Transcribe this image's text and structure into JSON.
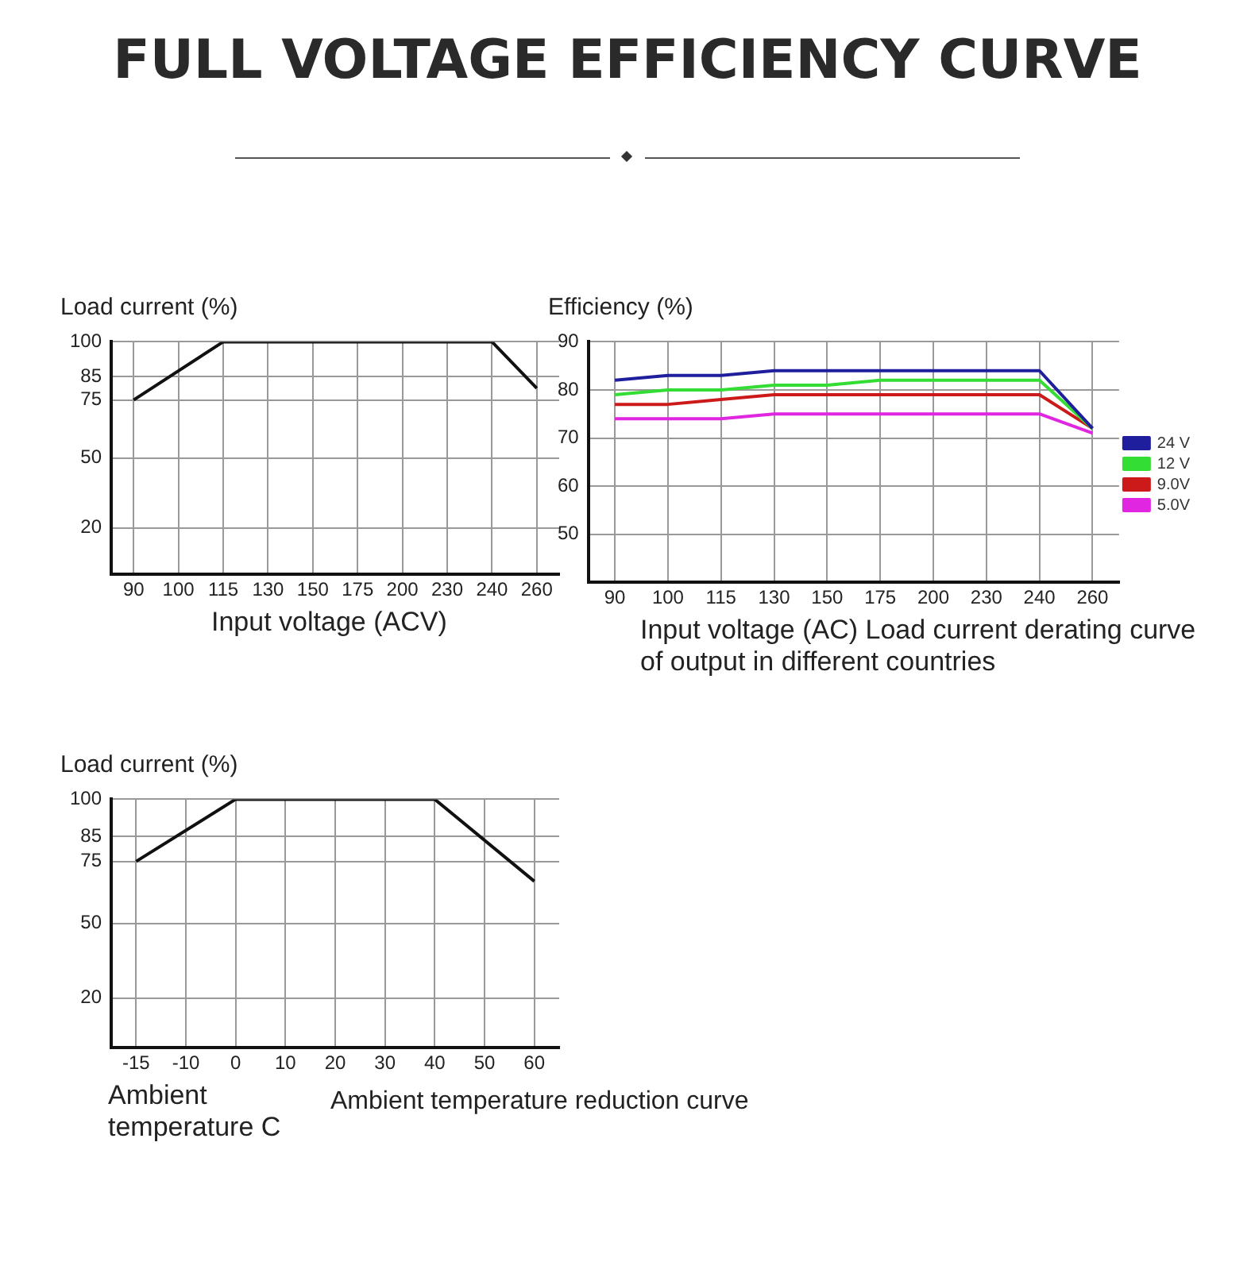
{
  "chart_data": [
    {
      "type": "other",
      "title": "FULL VOLTAGE EFFICIENCY CURVE"
    },
    {
      "type": "line",
      "ylabel": "Load current (%)",
      "xlabel": "Input voltage (ACV)",
      "categories": [
        "90",
        "100",
        "115",
        "130",
        "150",
        "175",
        "200",
        "230",
        "240",
        "260"
      ],
      "series": [
        {
          "color": "#111111",
          "values": [
            75,
            null,
            100,
            null,
            null,
            null,
            null,
            null,
            100,
            80
          ]
        }
      ],
      "ylim": [
        0,
        100
      ],
      "yticks": [
        20,
        50,
        75,
        85,
        100
      ],
      "grid": true,
      "legend": false,
      "marker": "none",
      "line_style": "solid"
    },
    {
      "type": "line",
      "ylabel": "Efficiency (%)",
      "xlabel": "Input voltage (AC) Load current derating curve of output in different countries",
      "categories": [
        "90",
        "100",
        "115",
        "130",
        "150",
        "175",
        "200",
        "230",
        "240",
        "260"
      ],
      "series": [
        {
          "name": "24 V",
          "color": "#1f1f9e",
          "values": [
            82,
            83,
            83,
            84,
            84,
            84,
            84,
            84,
            84,
            72
          ]
        },
        {
          "name": "12 V",
          "color": "#33dd33",
          "values": [
            79,
            80,
            80,
            81,
            81,
            82,
            82,
            82,
            82,
            72
          ]
        },
        {
          "name": "9.0V",
          "color": "#cc1a1a",
          "values": [
            77,
            77,
            78,
            79,
            79,
            79,
            79,
            79,
            79,
            72
          ]
        },
        {
          "name": "5.0V",
          "color": "#e026e0",
          "values": [
            74,
            74,
            74,
            75,
            75,
            75,
            75,
            75,
            75,
            71
          ]
        }
      ],
      "ylim": [
        40,
        90
      ],
      "yticks": [
        50,
        60,
        70,
        80,
        90
      ],
      "grid": true,
      "legend": "right",
      "marker": "none",
      "line_style": "solid"
    },
    {
      "type": "line",
      "ylabel": "Load current (%)",
      "xlabel": "Ambient temperature C",
      "annotations": [
        "Ambient temperature reduction curve"
      ],
      "categories": [
        "-15",
        "-10",
        "0",
        "10",
        "20",
        "30",
        "40",
        "50",
        "60"
      ],
      "series": [
        {
          "color": "#111111",
          "values": [
            75,
            null,
            100,
            null,
            null,
            null,
            100,
            null,
            67
          ]
        }
      ],
      "ylim": [
        0,
        100
      ],
      "yticks": [
        20,
        50,
        75,
        85,
        100
      ],
      "grid": true,
      "legend": false,
      "marker": "none",
      "line_style": "solid"
    }
  ]
}
